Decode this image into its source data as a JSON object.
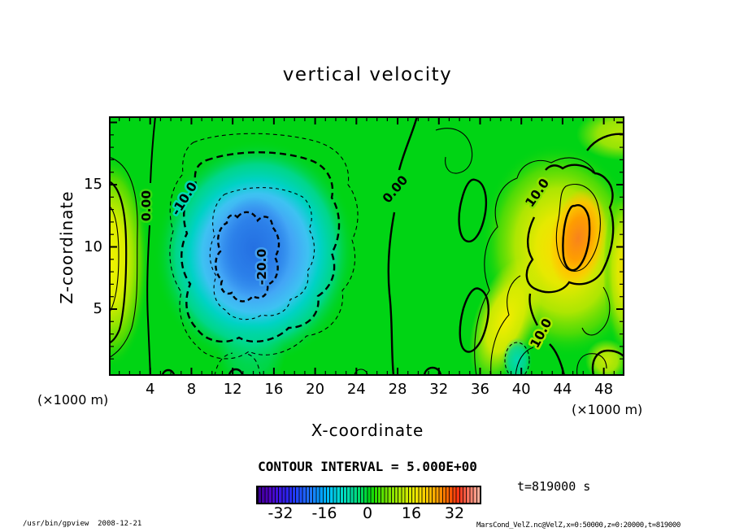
{
  "title": "vertical velocity",
  "axes": {
    "x": {
      "label": "X-coordinate",
      "unit_label": "(×1000 m)",
      "ticks": [
        4,
        8,
        12,
        16,
        20,
        24,
        28,
        32,
        36,
        40,
        44,
        48
      ],
      "range": [
        0,
        50
      ],
      "minor_step": 1,
      "major_step": 4
    },
    "z": {
      "label": "Z-coordinate",
      "unit_label": "(×1000 m)",
      "ticks": [
        5,
        10,
        15
      ],
      "range": [
        0,
        20
      ],
      "minor_step": 1,
      "major_step": 5
    }
  },
  "contours": {
    "labels": [
      "0.00",
      "-10.0",
      "-20.0",
      "0.00",
      "10.0",
      "10.0"
    ]
  },
  "legend": {
    "contour_interval": "CONTOUR INTERVAL = 5.000E+00",
    "time": "t=819000 s"
  },
  "colorbar": {
    "ticks": [
      "-32",
      "-16",
      "0",
      "16",
      "32"
    ],
    "approx_range": [
      -42,
      42
    ]
  },
  "footer": {
    "left": "/usr/bin/gpview  2008-12-21",
    "right": "MarsCond_VelZ.nc@VelZ,x=0:50000,z=0:20000,t=819000"
  },
  "colors": {
    "plot_background": "#00d414",
    "downdraft_core_blue": "#2b76e4",
    "updraft_core_orange": "#f8831c",
    "left_band_yellow": "#eef200",
    "frame": "#000000"
  },
  "chart_data": {
    "type": "heatmap",
    "subtype": "filled-contour",
    "title": "vertical velocity",
    "xlabel": "X-coordinate (×1000 m)",
    "ylabel": "Z-coordinate (×1000 m)",
    "xlim": [
      0,
      50
    ],
    "ylim": [
      0,
      20
    ],
    "contour_interval": 5.0,
    "labeled_contour_levels": [
      -20,
      -10,
      0,
      10
    ],
    "negative_contours_dashed": true,
    "colorbar_ticks": [
      -32,
      -16,
      0,
      16,
      32
    ],
    "colorbar_range_estimate": [
      -42,
      42
    ],
    "time_seconds": 819000,
    "features": [
      {
        "name": "central downdraft",
        "x_extent": [
          8,
          23
        ],
        "z_extent": [
          1,
          14
        ],
        "center": {
          "x": 14,
          "z": 9
        },
        "peak_value_estimate": -24,
        "enclosing_contours": [
          -5,
          -10,
          -15,
          -20
        ]
      },
      {
        "name": "right updraft",
        "x_extent": [
          38,
          50
        ],
        "z_extent": [
          3,
          15
        ],
        "center": {
          "x": 45,
          "z": 10
        },
        "peak_value_estimate": 24,
        "enclosing_contours": [
          5,
          10,
          15,
          20
        ]
      },
      {
        "name": "left boundary updraft",
        "x_extent": [
          0,
          3
        ],
        "z_extent": [
          2,
          15
        ],
        "center": {
          "x": 0.5,
          "z": 7.5
        },
        "peak_value_estimate": 13,
        "enclosing_contours": [
          5,
          10
        ]
      },
      {
        "name": "zero contour left",
        "orientation": "vertical",
        "x_position": 4
      },
      {
        "name": "zero contour middle",
        "orientation": "vertical",
        "x_position": 28
      }
    ]
  }
}
